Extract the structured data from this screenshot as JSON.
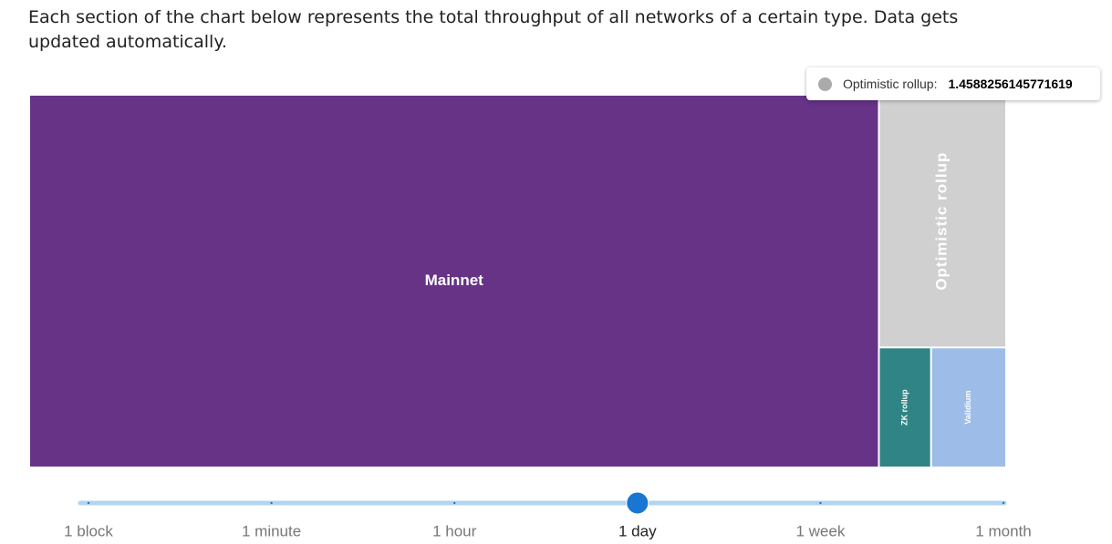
{
  "description": "Each section of the chart below represents the total throughput of all networks of a certain type. Data gets updated automatically.",
  "chart_data": {
    "type": "treemap",
    "categories": [
      "Mainnet",
      "Optimistic rollup",
      "ZK rollup",
      "Validium"
    ],
    "values": [
      14.36,
      1.4588256145771619,
      0.284,
      0.409
    ],
    "colors": [
      "#663387",
      "#d0d0d0",
      "#318485",
      "#9dbde8"
    ],
    "tooltip": {
      "label": "Optimistic rollup:",
      "value": "1.4588256145771619",
      "color": "#aaaaaa"
    }
  },
  "time_range": {
    "options": [
      "1 block",
      "1 minute",
      "1 hour",
      "1 day",
      "1 week",
      "1 month"
    ],
    "selected": "1 day"
  }
}
